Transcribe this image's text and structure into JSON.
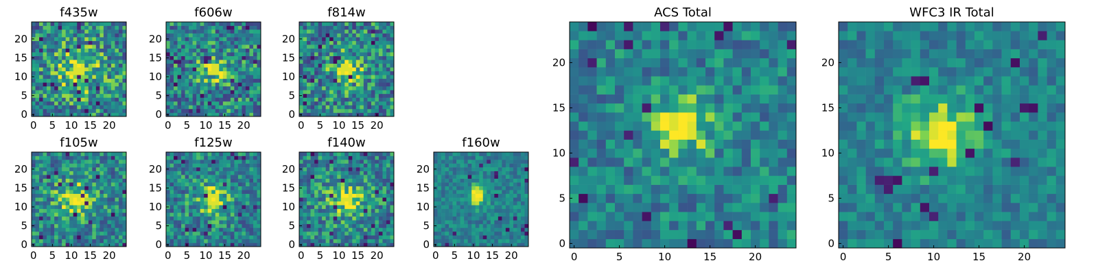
{
  "chart_data": [
    {
      "type": "heatmap",
      "title": "f435w",
      "xticks": [
        "0",
        "5",
        "10",
        "15",
        "20"
      ],
      "yticks": [
        "0",
        "5",
        "10",
        "15",
        "20"
      ],
      "grid_size": 25,
      "colormap": "viridis",
      "peak": [
        12,
        12
      ],
      "spread": 5,
      "contrast": 0.25,
      "noise": 0.65,
      "seed": 11
    },
    {
      "type": "heatmap",
      "title": "f606w",
      "xticks": [
        "0",
        "5",
        "10",
        "15",
        "20"
      ],
      "yticks": [
        "0",
        "5",
        "10",
        "15",
        "20"
      ],
      "grid_size": 25,
      "colormap": "viridis",
      "peak": [
        12,
        12
      ],
      "spread": 2.5,
      "contrast": 0.35,
      "noise": 0.65,
      "seed": 23
    },
    {
      "type": "heatmap",
      "title": "f814w",
      "xticks": [
        "0",
        "5",
        "10",
        "15",
        "20"
      ],
      "yticks": [
        "0",
        "5",
        "10",
        "15",
        "20"
      ],
      "grid_size": 25,
      "colormap": "viridis",
      "peak": [
        12,
        12
      ],
      "spread": 3,
      "contrast": 0.3,
      "noise": 0.65,
      "seed": 37
    },
    {
      "type": "heatmap",
      "title": "f105w",
      "xticks": [
        "0",
        "5",
        "10",
        "15",
        "20"
      ],
      "yticks": [
        "0",
        "5",
        "10",
        "15",
        "20"
      ],
      "grid_size": 25,
      "colormap": "viridis",
      "peak": [
        11,
        12
      ],
      "spread": 4,
      "contrast": 0.3,
      "noise": 0.55,
      "seed": 41
    },
    {
      "type": "heatmap",
      "title": "f125w",
      "xticks": [
        "0",
        "5",
        "10",
        "15",
        "20"
      ],
      "yticks": [
        "0",
        "5",
        "10",
        "15",
        "20"
      ],
      "grid_size": 25,
      "colormap": "viridis",
      "peak": [
        12,
        12
      ],
      "spread": 3.5,
      "contrast": 0.3,
      "noise": 0.55,
      "seed": 53
    },
    {
      "type": "heatmap",
      "title": "f140w",
      "xticks": [
        "0",
        "5",
        "10",
        "15",
        "20"
      ],
      "yticks": [
        "0",
        "5",
        "10",
        "15",
        "20"
      ],
      "grid_size": 25,
      "colormap": "viridis",
      "peak": [
        12,
        12
      ],
      "spread": 4,
      "contrast": 0.3,
      "noise": 0.55,
      "seed": 67
    },
    {
      "type": "heatmap",
      "title": "f160w",
      "xticks": [
        "0",
        "5",
        "10",
        "15",
        "20"
      ],
      "yticks": [
        "0",
        "5",
        "10",
        "15",
        "20"
      ],
      "grid_size": 25,
      "colormap": "viridis",
      "peak": [
        11,
        13
      ],
      "spread": 2,
      "contrast": 0.45,
      "noise": 0.35,
      "seed": 79
    },
    {
      "type": "heatmap",
      "title": "ACS Total",
      "xticks": [
        "0",
        "5",
        "10",
        "15",
        "20"
      ],
      "yticks": [
        "0",
        "5",
        "10",
        "15",
        "20"
      ],
      "grid_size": 25,
      "colormap": "viridis",
      "peak": [
        12,
        13
      ],
      "spread": 2.5,
      "contrast": 0.4,
      "noise": 0.45,
      "seed": 97
    },
    {
      "type": "heatmap",
      "title": "WFC3 IR Total",
      "xticks": [
        "0",
        "5",
        "10",
        "15",
        "20"
      ],
      "yticks": [
        "0",
        "5",
        "10",
        "15",
        "20"
      ],
      "grid_size": 25,
      "colormap": "viridis",
      "peak": [
        11,
        12
      ],
      "spread": 3,
      "contrast": 0.45,
      "noise": 0.35,
      "seed": 101
    }
  ]
}
